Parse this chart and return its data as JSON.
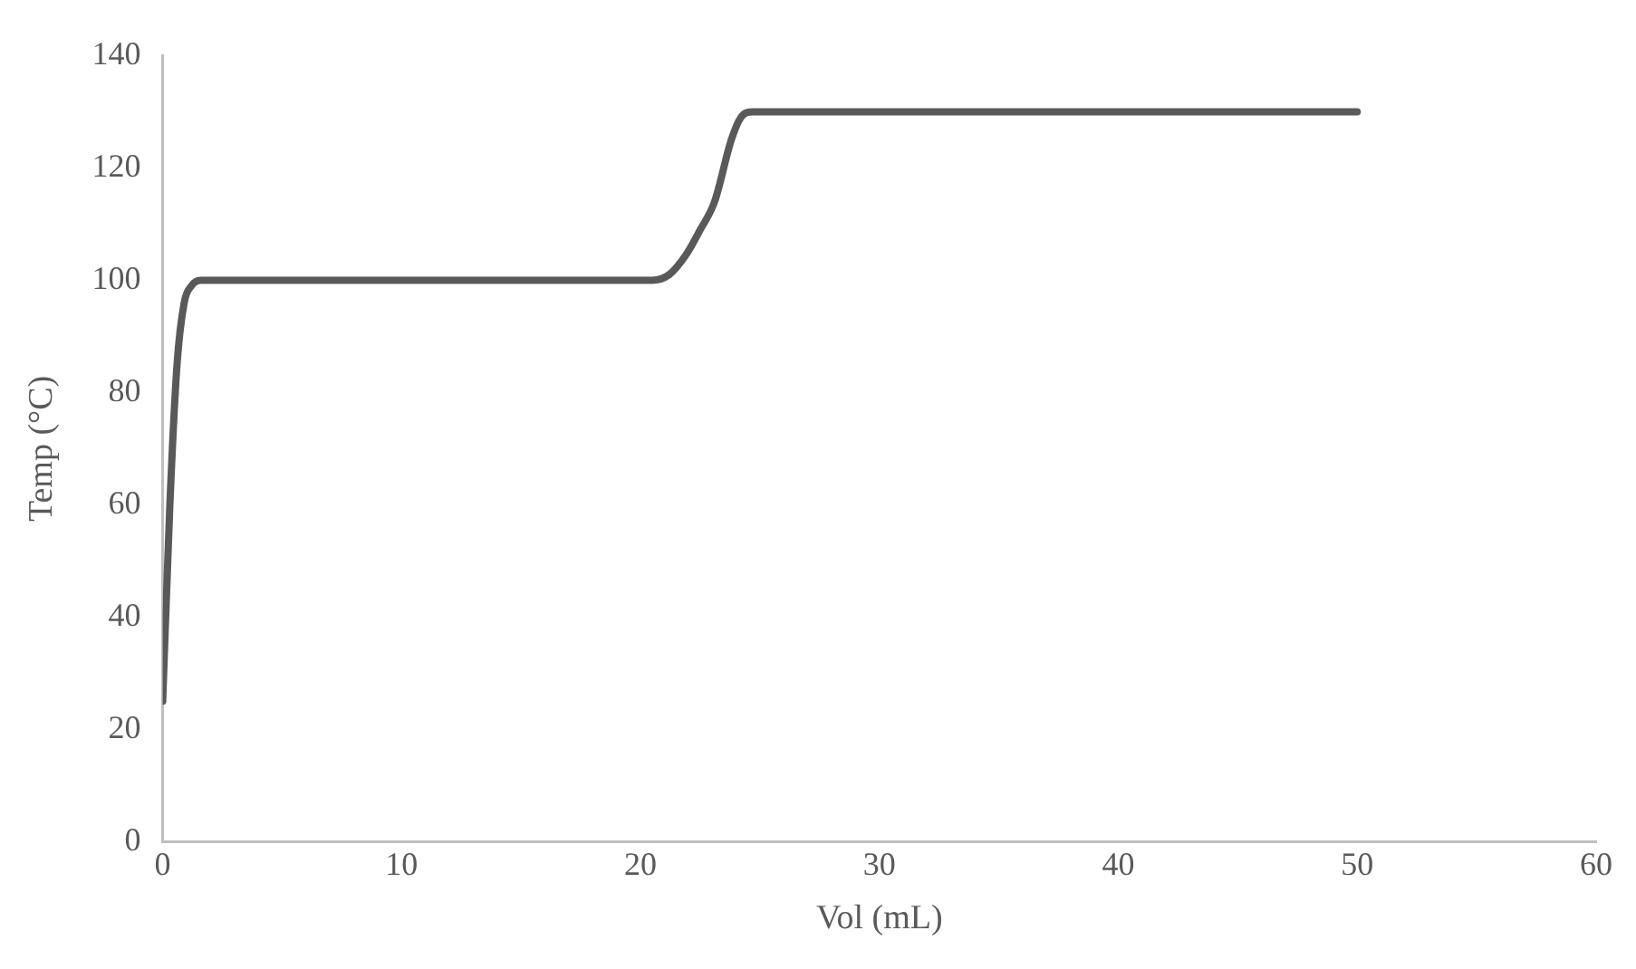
{
  "chart_data": {
    "type": "line",
    "xlabel": "Vol (mL)",
    "ylabel": "Temp (°C)",
    "series": [
      {
        "color": "#595959",
        "x": [
          0,
          0.3,
          0.6,
          0.9,
          1.2,
          1.6,
          2,
          5,
          10,
          15,
          20,
          20.5,
          21.2,
          21.9,
          22.5,
          23.1,
          23.8,
          24.2,
          24.7,
          26,
          30,
          35,
          40,
          45,
          50
        ],
        "values": [
          25,
          60,
          85,
          96,
          99,
          100,
          100,
          100,
          100,
          100,
          100,
          100,
          101,
          104.5,
          109,
          114,
          125,
          129,
          130,
          130,
          130,
          130,
          130,
          130,
          130
        ]
      }
    ],
    "xlim": [
      0,
      60
    ],
    "xticks": [
      0,
      10,
      20,
      30,
      40,
      50,
      60
    ],
    "ylim": [
      0,
      140
    ],
    "yticks": [
      0,
      20,
      40,
      60,
      80,
      100,
      120,
      140
    ],
    "grid": false,
    "legend": false,
    "marker": "none",
    "line_style": "solid"
  }
}
